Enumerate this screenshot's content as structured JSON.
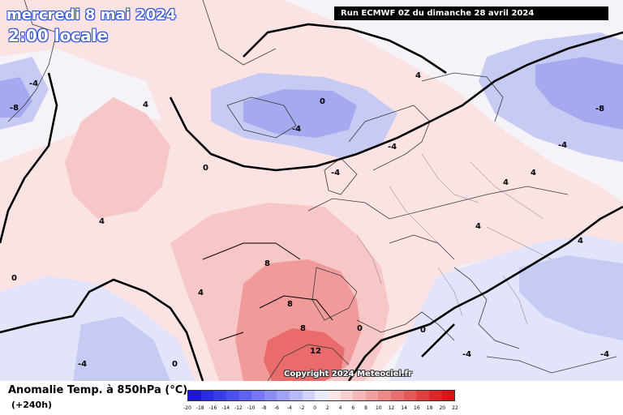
{
  "header": {
    "date": "mercredi 8 mai 2024",
    "local_time": "2:00 locale",
    "run_info": "Run ECMWF 0Z du dimanche 28 avril 2024"
  },
  "footer": {
    "copyright": "Copyright 2024 Meteociel.fr",
    "legend_title": "Anomalie Temp. à 850hPa (°C)",
    "lead_time": "(+240h)"
  },
  "legend": {
    "ticks": [
      "-20",
      "-18",
      "-16",
      "-14",
      "-12",
      "-10",
      "-8",
      "-6",
      "-4",
      "-2",
      "0",
      "2",
      "4",
      "6",
      "8",
      "10",
      "12",
      "14",
      "16",
      "18",
      "20",
      "22"
    ],
    "colors": [
      "#1c14d6",
      "#2a2ae0",
      "#3b3ce6",
      "#4d4fec",
      "#6062f0",
      "#7578f2",
      "#8a8df4",
      "#a0a3f6",
      "#b8bbf8",
      "#d0d2fa",
      "#e8e9fc",
      "#fbe6e6",
      "#f8d0d0",
      "#f4b8b8",
      "#f0a0a0",
      "#ec8888",
      "#e87070",
      "#e45858",
      "#e04040",
      "#dc2828",
      "#d81414"
    ]
  },
  "map": {
    "contour_labels": [
      "-8",
      "-4",
      "0",
      "4",
      "8",
      "12",
      "4",
      "-4",
      "0",
      "-8",
      "-4",
      "4",
      "0",
      "8",
      "8",
      "4",
      "-4",
      "0",
      "4",
      "-4",
      "0",
      "4",
      "-4",
      "4",
      "0",
      "-4",
      "4",
      "-4"
    ]
  },
  "colors": {
    "warm_light": "#fbe3e3",
    "warm_mid": "#f7c7c7",
    "warm_strong": "#f19a9a",
    "warm_max": "#e96b6b",
    "cool_light": "#e2e4fa",
    "cool_mid": "#c7cbf4",
    "cool_strong": "#a5aaf0",
    "land_border": "#3a3a3a"
  }
}
